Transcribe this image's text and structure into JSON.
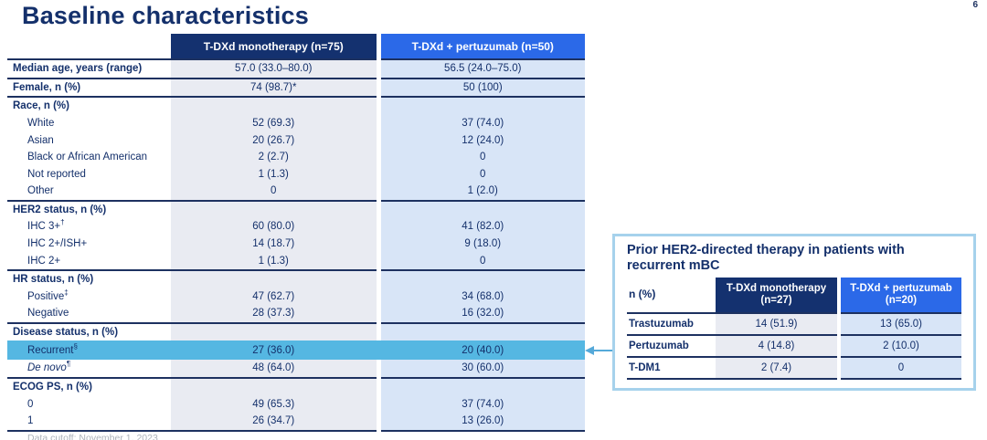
{
  "slide": {
    "title": "Baseline characteristics",
    "page_number": "6",
    "footnote": "Data cutoff: November 1, 2023"
  },
  "colors": {
    "navy": "#14316F",
    "royal": "#2B69E8",
    "line": "#1D3160",
    "navyText": "#14306B",
    "colGray": "#E9EBF2",
    "colBlue": "#D8E5F7",
    "highlight": "#55B7E2",
    "arrow": "#55A9D9",
    "calloutBorder": "#A6D2EC",
    "footnote": "#ADB3BB"
  },
  "main_table": {
    "col1_header": "T-DXd monotherapy  (n=75)",
    "col2_header": "T-DXd + pertuzumab  (n=50)",
    "rows": [
      {
        "label": "Median age, years (range)",
        "sup": "",
        "bold": true,
        "indent": false,
        "italic": false,
        "highlight": false,
        "group_start": true,
        "v1": "57.0 (33.0–80.0)",
        "v2": "56.5 (24.0–75.0)"
      },
      {
        "label": "Female, n (%)",
        "sup": "",
        "bold": true,
        "indent": false,
        "italic": false,
        "highlight": false,
        "group_start": true,
        "v1": "74 (98.7)*",
        "v2": "50 (100)"
      },
      {
        "label": "Race, n (%)",
        "sup": "",
        "bold": true,
        "indent": false,
        "italic": false,
        "highlight": false,
        "group_start": true,
        "v1": "",
        "v2": ""
      },
      {
        "label": "White",
        "sup": "",
        "bold": false,
        "indent": true,
        "italic": false,
        "highlight": false,
        "group_start": false,
        "v1": "52 (69.3)",
        "v2": "37 (74.0)"
      },
      {
        "label": "Asian",
        "sup": "",
        "bold": false,
        "indent": true,
        "italic": false,
        "highlight": false,
        "group_start": false,
        "v1": "20 (26.7)",
        "v2": "12 (24.0)"
      },
      {
        "label": "Black or African American",
        "sup": "",
        "bold": false,
        "indent": true,
        "italic": false,
        "highlight": false,
        "group_start": false,
        "v1": "2 (2.7)",
        "v2": "0"
      },
      {
        "label": "Not reported",
        "sup": "",
        "bold": false,
        "indent": true,
        "italic": false,
        "highlight": false,
        "group_start": false,
        "v1": "1 (1.3)",
        "v2": "0"
      },
      {
        "label": "Other",
        "sup": "",
        "bold": false,
        "indent": true,
        "italic": false,
        "highlight": false,
        "group_start": false,
        "v1": "0",
        "v2": "1 (2.0)"
      },
      {
        "label": "HER2 status, n (%)",
        "sup": "",
        "bold": true,
        "indent": false,
        "italic": false,
        "highlight": false,
        "group_start": true,
        "v1": "",
        "v2": ""
      },
      {
        "label": "IHC 3+",
        "sup": "†",
        "bold": false,
        "indent": true,
        "italic": false,
        "highlight": false,
        "group_start": false,
        "v1": "60 (80.0)",
        "v2": "41 (82.0)"
      },
      {
        "label": "IHC 2+/ISH+",
        "sup": "",
        "bold": false,
        "indent": true,
        "italic": false,
        "highlight": false,
        "group_start": false,
        "v1": "14 (18.7)",
        "v2": "9 (18.0)"
      },
      {
        "label": "IHC 2+",
        "sup": "",
        "bold": false,
        "indent": true,
        "italic": false,
        "highlight": false,
        "group_start": false,
        "v1": "1 (1.3)",
        "v2": "0"
      },
      {
        "label": "HR status, n (%)",
        "sup": "",
        "bold": true,
        "indent": false,
        "italic": false,
        "highlight": false,
        "group_start": true,
        "v1": "",
        "v2": ""
      },
      {
        "label": "Positive",
        "sup": "‡",
        "bold": false,
        "indent": true,
        "italic": false,
        "highlight": false,
        "group_start": false,
        "v1": "47 (62.7)",
        "v2": "34 (68.0)"
      },
      {
        "label": "Negative",
        "sup": "",
        "bold": false,
        "indent": true,
        "italic": false,
        "highlight": false,
        "group_start": false,
        "v1": "28 (37.3)",
        "v2": "16 (32.0)"
      },
      {
        "label": "Disease status, n (%)",
        "sup": "",
        "bold": true,
        "indent": false,
        "italic": false,
        "highlight": false,
        "group_start": true,
        "v1": "",
        "v2": ""
      },
      {
        "label": "Recurrent",
        "sup": "§",
        "bold": false,
        "indent": true,
        "italic": false,
        "highlight": true,
        "group_start": false,
        "v1": "27 (36.0)",
        "v2": "20 (40.0)"
      },
      {
        "label": "De novo",
        "sup": "¶",
        "bold": false,
        "indent": true,
        "italic": true,
        "highlight": false,
        "group_start": false,
        "v1": "48 (64.0)",
        "v2": "30 (60.0)"
      },
      {
        "label": "ECOG PS, n (%)",
        "sup": "",
        "bold": true,
        "indent": false,
        "italic": false,
        "highlight": false,
        "group_start": true,
        "v1": "",
        "v2": ""
      },
      {
        "label": "0",
        "sup": "",
        "bold": false,
        "indent": true,
        "italic": false,
        "highlight": false,
        "group_start": false,
        "v1": "49 (65.3)",
        "v2": "37 (74.0)"
      },
      {
        "label": "1",
        "sup": "",
        "bold": false,
        "indent": true,
        "italic": false,
        "highlight": false,
        "group_start": false,
        "v1": "26 (34.7)",
        "v2": "13 (26.0)"
      }
    ]
  },
  "callout": {
    "title": "Prior HER2-directed therapy in patients with recurrent mBC",
    "col0_header": "n (%)",
    "col1_header": "T-DXd monotherapy (n=27)",
    "col2_header": "T-DXd + pertuzumab (n=20)",
    "rows": [
      {
        "label": "Trastuzumab",
        "v1": "14 (51.9)",
        "v2": "13 (65.0)"
      },
      {
        "label": "Pertuzumab",
        "v1": "4 (14.8)",
        "v2": "2 (10.0)"
      },
      {
        "label": "T-DM1",
        "v1": "2 (7.4)",
        "v2": "0"
      }
    ]
  }
}
